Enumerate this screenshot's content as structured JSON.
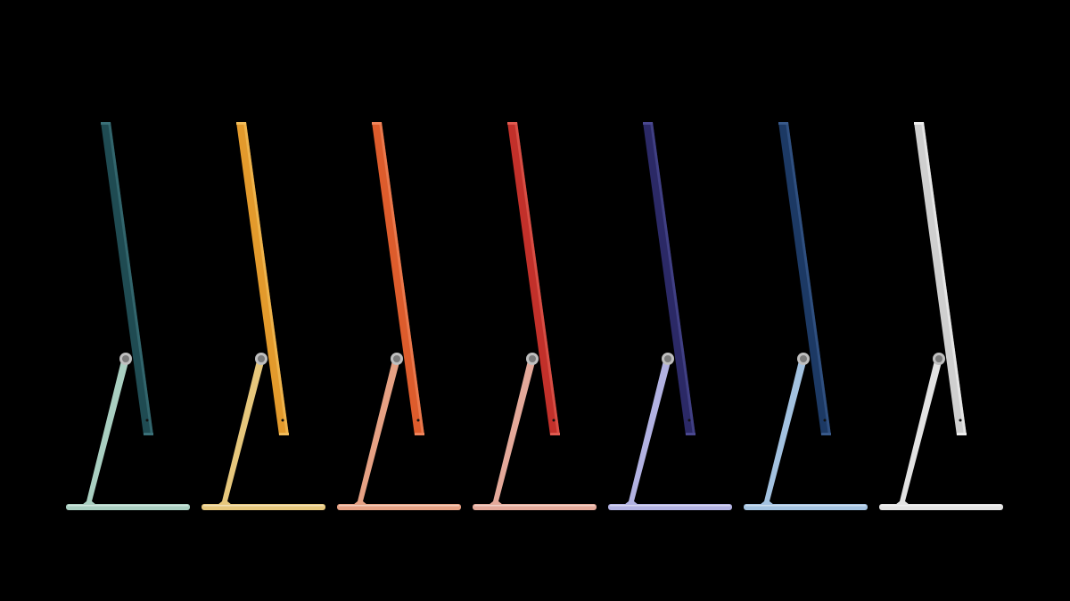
{
  "background": "#000000",
  "imacs": [
    {
      "color_name": "green",
      "panel": "#1f4b52",
      "panel_edge": "#3a7078",
      "stand": "#a9cfc1"
    },
    {
      "color_name": "yellow",
      "panel": "#e39a2c",
      "panel_edge": "#f2bd5a",
      "stand": "#e6c77c"
    },
    {
      "color_name": "orange",
      "panel": "#dd5c2c",
      "panel_edge": "#f0845a",
      "stand": "#e6a184"
    },
    {
      "color_name": "red",
      "panel": "#c2302a",
      "panel_edge": "#e05a50",
      "stand": "#e4a99a"
    },
    {
      "color_name": "purple",
      "panel": "#2b2966",
      "panel_edge": "#4a4890",
      "stand": "#b2b2e2"
    },
    {
      "color_name": "blue",
      "panel": "#1c3964",
      "panel_edge": "#38598a",
      "stand": "#a3c2e0"
    },
    {
      "color_name": "silver",
      "panel": "#cfcfcf",
      "panel_edge": "#eeeeee",
      "stand": "#e2e2e2"
    }
  ]
}
